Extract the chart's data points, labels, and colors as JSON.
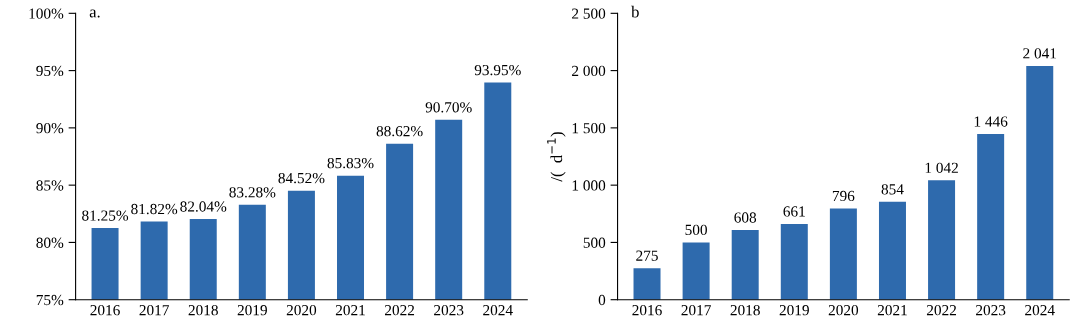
{
  "chart_data": [
    {
      "type": "bar",
      "annotations": [
        "a."
      ],
      "categories": [
        "2016",
        "2017",
        "2018",
        "2019",
        "2020",
        "2021",
        "2022",
        "2023",
        "2024"
      ],
      "values": [
        81.25,
        81.82,
        82.04,
        83.28,
        84.52,
        85.83,
        88.62,
        90.7,
        93.95
      ],
      "value_labels": [
        "81.25%",
        "81.82%",
        "82.04%",
        "83.28%",
        "84.52%",
        "85.83%",
        "88.62%",
        "90.70%",
        "93.95%"
      ],
      "color": "#2e6aad",
      "ylim": [
        75,
        100
      ],
      "yticks": [
        {
          "value": 75,
          "label": "75%"
        },
        {
          "value": 80,
          "label": "80%"
        },
        {
          "value": 85,
          "label": "85%"
        },
        {
          "value": 90,
          "label": "90%"
        },
        {
          "value": 95,
          "label": "95%"
        },
        {
          "value": 100,
          "label": "100%"
        }
      ],
      "grid": false,
      "legend": false
    },
    {
      "type": "bar",
      "annotations": [
        "b"
      ],
      "ylabel": "/(  d$^{−1}$)",
      "categories": [
        "2016",
        "2017",
        "2018",
        "2019",
        "2020",
        "2021",
        "2022",
        "2023",
        "2024"
      ],
      "values": [
        275,
        500,
        608,
        661,
        796,
        854,
        1042,
        1446,
        2041
      ],
      "value_labels": [
        "275",
        "500",
        "608",
        "661",
        "796",
        "854",
        "1 042",
        "1 446",
        "2 041"
      ],
      "color": "#2e6aad",
      "ylim": [
        0,
        2500
      ],
      "yticks": [
        0,
        500,
        {
          "value": 1000,
          "label": "1 000"
        },
        {
          "value": 1500,
          "label": "1 500"
        },
        {
          "value": 2000,
          "label": "2 000"
        },
        {
          "value": 2500,
          "label": "2 500"
        }
      ],
      "grid": false,
      "legend": false
    }
  ]
}
